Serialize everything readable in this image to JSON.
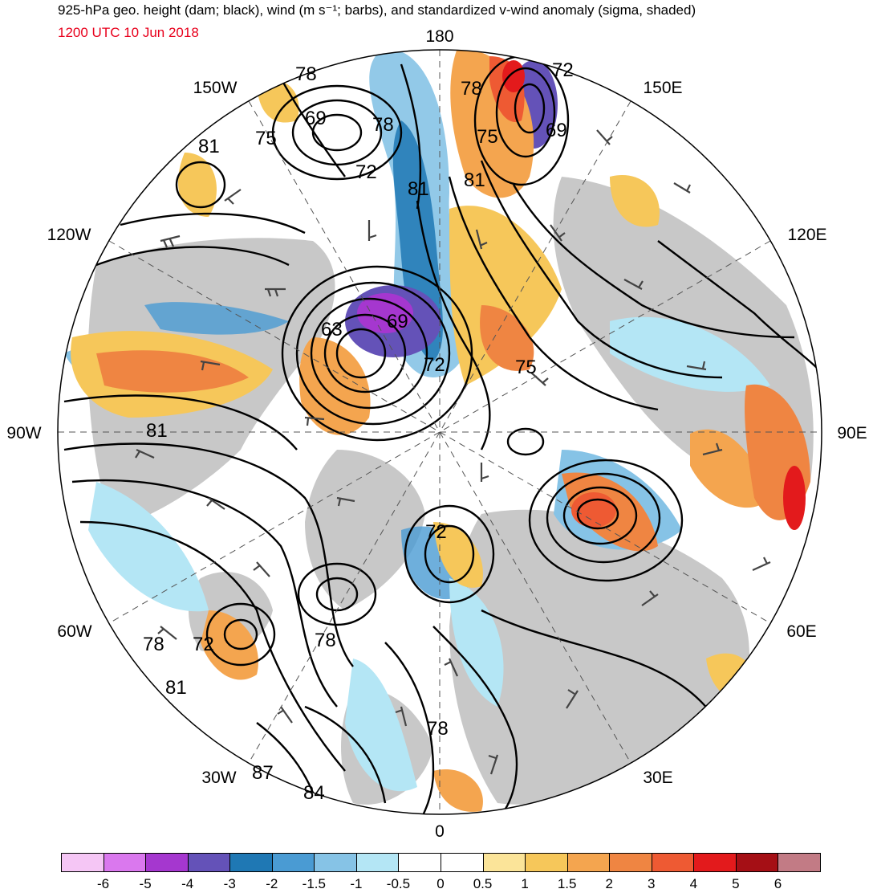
{
  "header": {
    "title": "925-hPa geo. height (dam; black), wind (m s⁻¹; barbs), and standardized v-wind anomaly (sigma, shaded)",
    "datetime": "1200 UTC 10 Jun 2018",
    "datetime_color": "#e8001c"
  },
  "longitude_labels": {
    "top": "180",
    "bottom": "0",
    "left": "90W",
    "right": "90E",
    "upper_left_1": "150W",
    "upper_left_2": "120W",
    "lower_left_1": "60W",
    "lower_left_2": "30W",
    "upper_right_1": "150E",
    "upper_right_2": "120E",
    "lower_right_1": "60E",
    "lower_right_2": "30E"
  },
  "contour_labels": [
    {
      "text": "78"
    },
    {
      "text": "69"
    },
    {
      "text": "75"
    },
    {
      "text": "81"
    },
    {
      "text": "78"
    },
    {
      "text": "72"
    },
    {
      "text": "81"
    },
    {
      "text": "78"
    },
    {
      "text": "72"
    },
    {
      "text": "75"
    },
    {
      "text": "69"
    },
    {
      "text": "81"
    },
    {
      "text": "63"
    },
    {
      "text": "69"
    },
    {
      "text": "72"
    },
    {
      "text": "75"
    },
    {
      "text": "81"
    },
    {
      "text": "72"
    },
    {
      "text": "78"
    },
    {
      "text": "72"
    },
    {
      "text": "78"
    },
    {
      "text": "81"
    },
    {
      "text": "87"
    },
    {
      "text": "84"
    },
    {
      "text": "78"
    }
  ],
  "colorbar": {
    "colors": [
      "#f5c6f5",
      "#da78ee",
      "#a537cf",
      "#6452b8",
      "#1f78b4",
      "#4a9bd3",
      "#86c3e6",
      "#b4e6f5",
      "#ffffff",
      "#ffffff",
      "#fbe499",
      "#f6c75a",
      "#f4a54f",
      "#ef8542",
      "#ee5a33",
      "#e31a1c",
      "#a50f15",
      "#c27b85"
    ],
    "labels": [
      "-6",
      "-5",
      "-4",
      "-3",
      "-2",
      "-1.5",
      "-1",
      "-0.5",
      "0",
      "0.5",
      "1",
      "1.5",
      "2",
      "3",
      "4",
      "5",
      "6"
    ]
  }
}
